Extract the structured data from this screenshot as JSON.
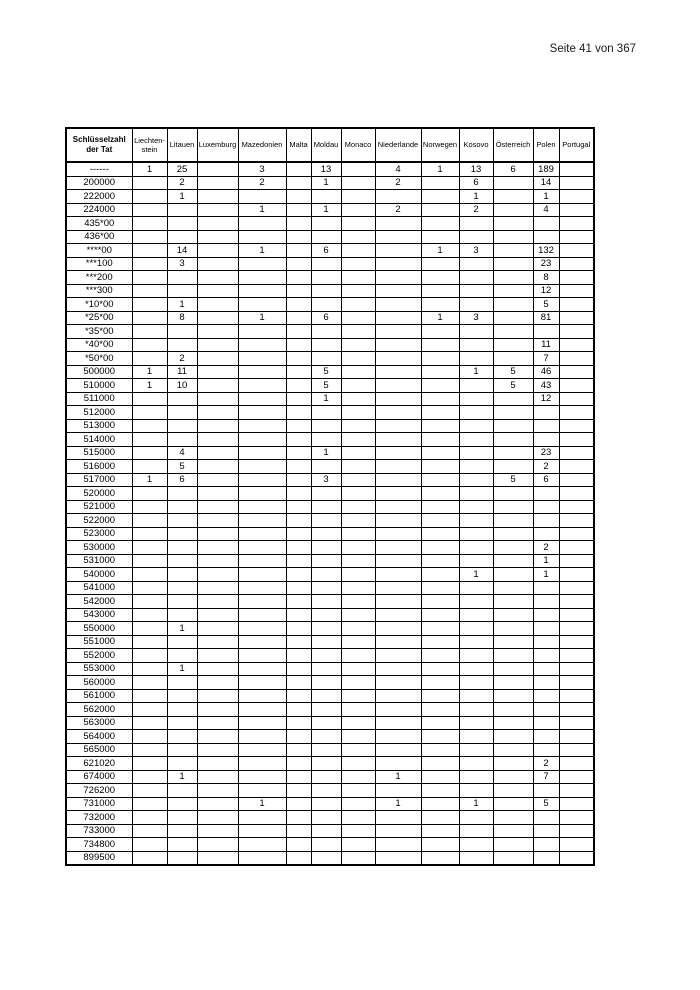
{
  "page": {
    "indicator": "Seite 41 von 367"
  },
  "table": {
    "key_header": "Schlüsselzahl\nder Tat",
    "columns": [
      "Liechten-\nstein",
      "Litauen",
      "Luxemburg",
      "Mazedonien",
      "Malta",
      "Moldau",
      "Monaco",
      "Niederlande",
      "Norwegen",
      "Kosovo",
      "Österreich",
      "Polen",
      "Portugal"
    ],
    "rows": [
      {
        "key": "------",
        "values": [
          "1",
          "25",
          "",
          "3",
          "",
          "13",
          "",
          "4",
          "1",
          "13",
          "6",
          "189",
          ""
        ]
      },
      {
        "key": "200000",
        "values": [
          "",
          "2",
          "",
          "2",
          "",
          "1",
          "",
          "2",
          "",
          "6",
          "",
          "14",
          ""
        ]
      },
      {
        "key": "222000",
        "values": [
          "",
          "1",
          "",
          "",
          "",
          "",
          "",
          "",
          "",
          "1",
          "",
          "1",
          ""
        ]
      },
      {
        "key": "224000",
        "values": [
          "",
          "",
          "",
          "1",
          "",
          "1",
          "",
          "2",
          "",
          "2",
          "",
          "4",
          ""
        ]
      },
      {
        "key": "435*00",
        "values": [
          "",
          "",
          "",
          "",
          "",
          "",
          "",
          "",
          "",
          "",
          "",
          "",
          ""
        ]
      },
      {
        "key": "436*00",
        "values": [
          "",
          "",
          "",
          "",
          "",
          "",
          "",
          "",
          "",
          "",
          "",
          "",
          ""
        ]
      },
      {
        "key": "****00",
        "values": [
          "",
          "14",
          "",
          "1",
          "",
          "6",
          "",
          "",
          "1",
          "3",
          "",
          "132",
          ""
        ]
      },
      {
        "key": "***100",
        "values": [
          "",
          "3",
          "",
          "",
          "",
          "",
          "",
          "",
          "",
          "",
          "",
          "23",
          ""
        ]
      },
      {
        "key": "***200",
        "values": [
          "",
          "",
          "",
          "",
          "",
          "",
          "",
          "",
          "",
          "",
          "",
          "8",
          ""
        ]
      },
      {
        "key": "***300",
        "values": [
          "",
          "",
          "",
          "",
          "",
          "",
          "",
          "",
          "",
          "",
          "",
          "12",
          ""
        ]
      },
      {
        "key": "*10*00",
        "values": [
          "",
          "1",
          "",
          "",
          "",
          "",
          "",
          "",
          "",
          "",
          "",
          "5",
          ""
        ]
      },
      {
        "key": "*25*00",
        "values": [
          "",
          "8",
          "",
          "1",
          "",
          "6",
          "",
          "",
          "1",
          "3",
          "",
          "81",
          ""
        ]
      },
      {
        "key": "*35*00",
        "values": [
          "",
          "",
          "",
          "",
          "",
          "",
          "",
          "",
          "",
          "",
          "",
          "",
          ""
        ]
      },
      {
        "key": "*40*00",
        "values": [
          "",
          "",
          "",
          "",
          "",
          "",
          "",
          "",
          "",
          "",
          "",
          "11",
          ""
        ]
      },
      {
        "key": "*50*00",
        "values": [
          "",
          "2",
          "",
          "",
          "",
          "",
          "",
          "",
          "",
          "",
          "",
          "7",
          ""
        ]
      },
      {
        "key": "500000",
        "values": [
          "1",
          "11",
          "",
          "",
          "",
          "5",
          "",
          "",
          "",
          "1",
          "5",
          "46",
          ""
        ]
      },
      {
        "key": "510000",
        "values": [
          "1",
          "10",
          "",
          "",
          "",
          "5",
          "",
          "",
          "",
          "",
          "5",
          "43",
          ""
        ]
      },
      {
        "key": "511000",
        "values": [
          "",
          "",
          "",
          "",
          "",
          "1",
          "",
          "",
          "",
          "",
          "",
          "12",
          ""
        ]
      },
      {
        "key": "512000",
        "values": [
          "",
          "",
          "",
          "",
          "",
          "",
          "",
          "",
          "",
          "",
          "",
          "",
          ""
        ]
      },
      {
        "key": "513000",
        "values": [
          "",
          "",
          "",
          "",
          "",
          "",
          "",
          "",
          "",
          "",
          "",
          "",
          ""
        ]
      },
      {
        "key": "514000",
        "values": [
          "",
          "",
          "",
          "",
          "",
          "",
          "",
          "",
          "",
          "",
          "",
          "",
          ""
        ]
      },
      {
        "key": "515000",
        "values": [
          "",
          "4",
          "",
          "",
          "",
          "1",
          "",
          "",
          "",
          "",
          "",
          "23",
          ""
        ]
      },
      {
        "key": "516000",
        "values": [
          "",
          "5",
          "",
          "",
          "",
          "",
          "",
          "",
          "",
          "",
          "",
          "2",
          ""
        ]
      },
      {
        "key": "517000",
        "values": [
          "1",
          "6",
          "",
          "",
          "",
          "3",
          "",
          "",
          "",
          "",
          "5",
          "6",
          ""
        ]
      },
      {
        "key": "520000",
        "values": [
          "",
          "",
          "",
          "",
          "",
          "",
          "",
          "",
          "",
          "",
          "",
          "",
          ""
        ]
      },
      {
        "key": "521000",
        "values": [
          "",
          "",
          "",
          "",
          "",
          "",
          "",
          "",
          "",
          "",
          "",
          "",
          ""
        ]
      },
      {
        "key": "522000",
        "values": [
          "",
          "",
          "",
          "",
          "",
          "",
          "",
          "",
          "",
          "",
          "",
          "",
          ""
        ]
      },
      {
        "key": "523000",
        "values": [
          "",
          "",
          "",
          "",
          "",
          "",
          "",
          "",
          "",
          "",
          "",
          "",
          ""
        ]
      },
      {
        "key": "530000",
        "values": [
          "",
          "",
          "",
          "",
          "",
          "",
          "",
          "",
          "",
          "",
          "",
          "2",
          ""
        ]
      },
      {
        "key": "531000",
        "values": [
          "",
          "",
          "",
          "",
          "",
          "",
          "",
          "",
          "",
          "",
          "",
          "1",
          ""
        ]
      },
      {
        "key": "540000",
        "values": [
          "",
          "",
          "",
          "",
          "",
          "",
          "",
          "",
          "",
          "1",
          "",
          "1",
          ""
        ]
      },
      {
        "key": "541000",
        "values": [
          "",
          "",
          "",
          "",
          "",
          "",
          "",
          "",
          "",
          "",
          "",
          "",
          ""
        ]
      },
      {
        "key": "542000",
        "values": [
          "",
          "",
          "",
          "",
          "",
          "",
          "",
          "",
          "",
          "",
          "",
          "",
          ""
        ]
      },
      {
        "key": "543000",
        "values": [
          "",
          "",
          "",
          "",
          "",
          "",
          "",
          "",
          "",
          "",
          "",
          "",
          ""
        ]
      },
      {
        "key": "550000",
        "values": [
          "",
          "1",
          "",
          "",
          "",
          "",
          "",
          "",
          "",
          "",
          "",
          "",
          ""
        ]
      },
      {
        "key": "551000",
        "values": [
          "",
          "",
          "",
          "",
          "",
          "",
          "",
          "",
          "",
          "",
          "",
          "",
          ""
        ]
      },
      {
        "key": "552000",
        "values": [
          "",
          "",
          "",
          "",
          "",
          "",
          "",
          "",
          "",
          "",
          "",
          "",
          ""
        ]
      },
      {
        "key": "553000",
        "values": [
          "",
          "1",
          "",
          "",
          "",
          "",
          "",
          "",
          "",
          "",
          "",
          "",
          ""
        ]
      },
      {
        "key": "560000",
        "values": [
          "",
          "",
          "",
          "",
          "",
          "",
          "",
          "",
          "",
          "",
          "",
          "",
          ""
        ]
      },
      {
        "key": "561000",
        "values": [
          "",
          "",
          "",
          "",
          "",
          "",
          "",
          "",
          "",
          "",
          "",
          "",
          ""
        ]
      },
      {
        "key": "562000",
        "values": [
          "",
          "",
          "",
          "",
          "",
          "",
          "",
          "",
          "",
          "",
          "",
          "",
          ""
        ]
      },
      {
        "key": "563000",
        "values": [
          "",
          "",
          "",
          "",
          "",
          "",
          "",
          "",
          "",
          "",
          "",
          "",
          ""
        ]
      },
      {
        "key": "564000",
        "values": [
          "",
          "",
          "",
          "",
          "",
          "",
          "",
          "",
          "",
          "",
          "",
          "",
          ""
        ]
      },
      {
        "key": "565000",
        "values": [
          "",
          "",
          "",
          "",
          "",
          "",
          "",
          "",
          "",
          "",
          "",
          "",
          ""
        ]
      },
      {
        "key": "621020",
        "values": [
          "",
          "",
          "",
          "",
          "",
          "",
          "",
          "",
          "",
          "",
          "",
          "2",
          ""
        ]
      },
      {
        "key": "674000",
        "values": [
          "",
          "1",
          "",
          "",
          "",
          "",
          "",
          "1",
          "",
          "",
          "",
          "7",
          ""
        ]
      },
      {
        "key": "726200",
        "values": [
          "",
          "",
          "",
          "",
          "",
          "",
          "",
          "",
          "",
          "",
          "",
          "",
          ""
        ]
      },
      {
        "key": "731000",
        "values": [
          "",
          "",
          "",
          "1",
          "",
          "",
          "",
          "1",
          "",
          "1",
          "",
          "5",
          ""
        ]
      },
      {
        "key": "732000",
        "values": [
          "",
          "",
          "",
          "",
          "",
          "",
          "",
          "",
          "",
          "",
          "",
          "",
          ""
        ]
      },
      {
        "key": "733000",
        "values": [
          "",
          "",
          "",
          "",
          "",
          "",
          "",
          "",
          "",
          "",
          "",
          "",
          ""
        ]
      },
      {
        "key": "734800",
        "values": [
          "",
          "",
          "",
          "",
          "",
          "",
          "",
          "",
          "",
          "",
          "",
          "",
          ""
        ]
      },
      {
        "key": "899500",
        "values": [
          "",
          "",
          "",
          "",
          "",
          "",
          "",
          "",
          "",
          "",
          "",
          "",
          ""
        ]
      }
    ]
  }
}
